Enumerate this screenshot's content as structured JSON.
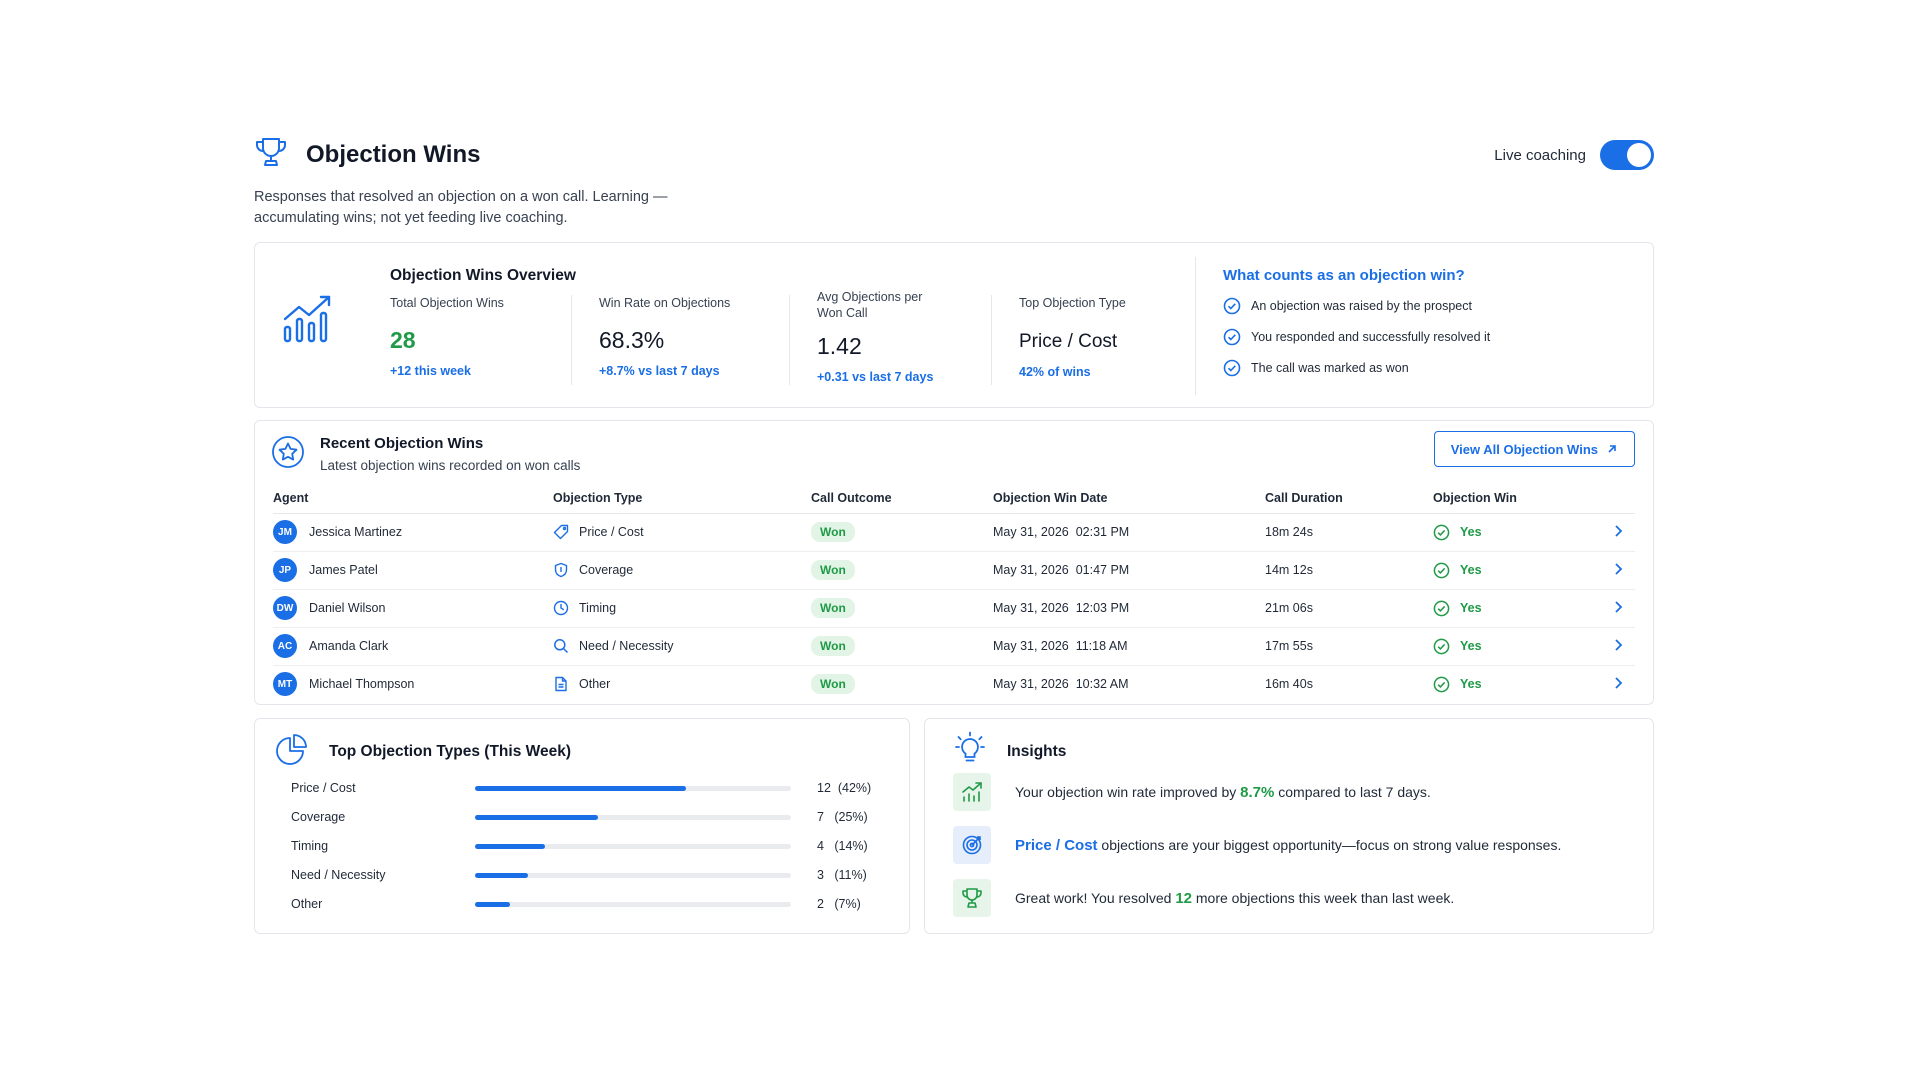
{
  "header": {
    "title": "Objection Wins",
    "subtitle": "Responses that resolved an objection on a won call. Learning — accumulating wins; not yet feeding live coaching.",
    "live_coaching_label": "Live coaching",
    "live_coaching_on": true
  },
  "overview": {
    "title": "Objection Wins Overview",
    "metrics": [
      {
        "label": "Total Objection Wins",
        "value": "28",
        "sub": "+12 this week"
      },
      {
        "label": "Win Rate on Objections",
        "value": "68.3%",
        "sub": "+8.7% vs last 7 days"
      },
      {
        "label": "Avg Objections per Won Call",
        "value": "1.42",
        "sub": "+0.31 vs last 7 days"
      },
      {
        "label": "Top Objection Type",
        "value": "Price / Cost",
        "sub": "42% of wins"
      }
    ],
    "what_counts": {
      "title": "What counts as an objection win?",
      "items": [
        "An objection was raised by the prospect",
        "You responded and successfully resolved it",
        "The call was marked as won"
      ]
    }
  },
  "recent": {
    "title": "Recent Objection Wins",
    "subtitle": "Latest objection wins recorded on won calls",
    "view_all_label": "View All Objection Wins",
    "columns": [
      "Agent",
      "Objection Type",
      "Call Outcome",
      "Objection Win Date",
      "Call Duration",
      "Objection Win"
    ],
    "rows": [
      {
        "initials": "JM",
        "agent": "Jessica Martinez",
        "type": "Price / Cost",
        "type_icon": "tag-icon",
        "outcome": "Won",
        "date": "May 31, 2026  02:31 PM",
        "duration": "18m 24s",
        "win": "Yes"
      },
      {
        "initials": "JP",
        "agent": "James Patel",
        "type": "Coverage",
        "type_icon": "shield-icon",
        "outcome": "Won",
        "date": "May 31, 2026  01:47 PM",
        "duration": "14m 12s",
        "win": "Yes"
      },
      {
        "initials": "DW",
        "agent": "Daniel Wilson",
        "type": "Timing",
        "type_icon": "clock-icon",
        "outcome": "Won",
        "date": "May 31, 2026  12:03 PM",
        "duration": "21m 06s",
        "win": "Yes"
      },
      {
        "initials": "AC",
        "agent": "Amanda Clark",
        "type": "Need / Necessity",
        "type_icon": "search-icon",
        "outcome": "Won",
        "date": "May 31, 2026  11:18 AM",
        "duration": "17m 55s",
        "win": "Yes"
      },
      {
        "initials": "MT",
        "agent": "Michael Thompson",
        "type": "Other",
        "type_icon": "document-icon",
        "outcome": "Won",
        "date": "May 31, 2026  10:32 AM",
        "duration": "16m 40s",
        "win": "Yes"
      }
    ]
  },
  "top_types": {
    "title": "Top Objection Types (This Week)",
    "items": [
      {
        "label": "Price / Cost",
        "count": 12,
        "display": "12  (42%)"
      },
      {
        "label": "Coverage",
        "count": 7,
        "display": "7   (25%)"
      },
      {
        "label": "Timing",
        "count": 4,
        "display": "4   (14%)"
      },
      {
        "label": "Need / Necessity",
        "count": 3,
        "display": "3   (11%)"
      },
      {
        "label": "Other",
        "count": 2,
        "display": "2   (7%)"
      }
    ],
    "max": 18
  },
  "insights": {
    "title": "Insights",
    "items": [
      {
        "pre": "Your objection win rate improved by ",
        "hl": "8.7%",
        "post": " compared to last 7 days."
      },
      {
        "pre": "",
        "hl": "Price / Cost",
        "post": " objections are your biggest opportunity—focus on strong value responses."
      },
      {
        "pre": "Great work! You resolved ",
        "hl": "12",
        "post": " more objections this week than last week."
      }
    ]
  },
  "colors": {
    "accent": "#1a6ee6",
    "success": "#1f9a46"
  }
}
